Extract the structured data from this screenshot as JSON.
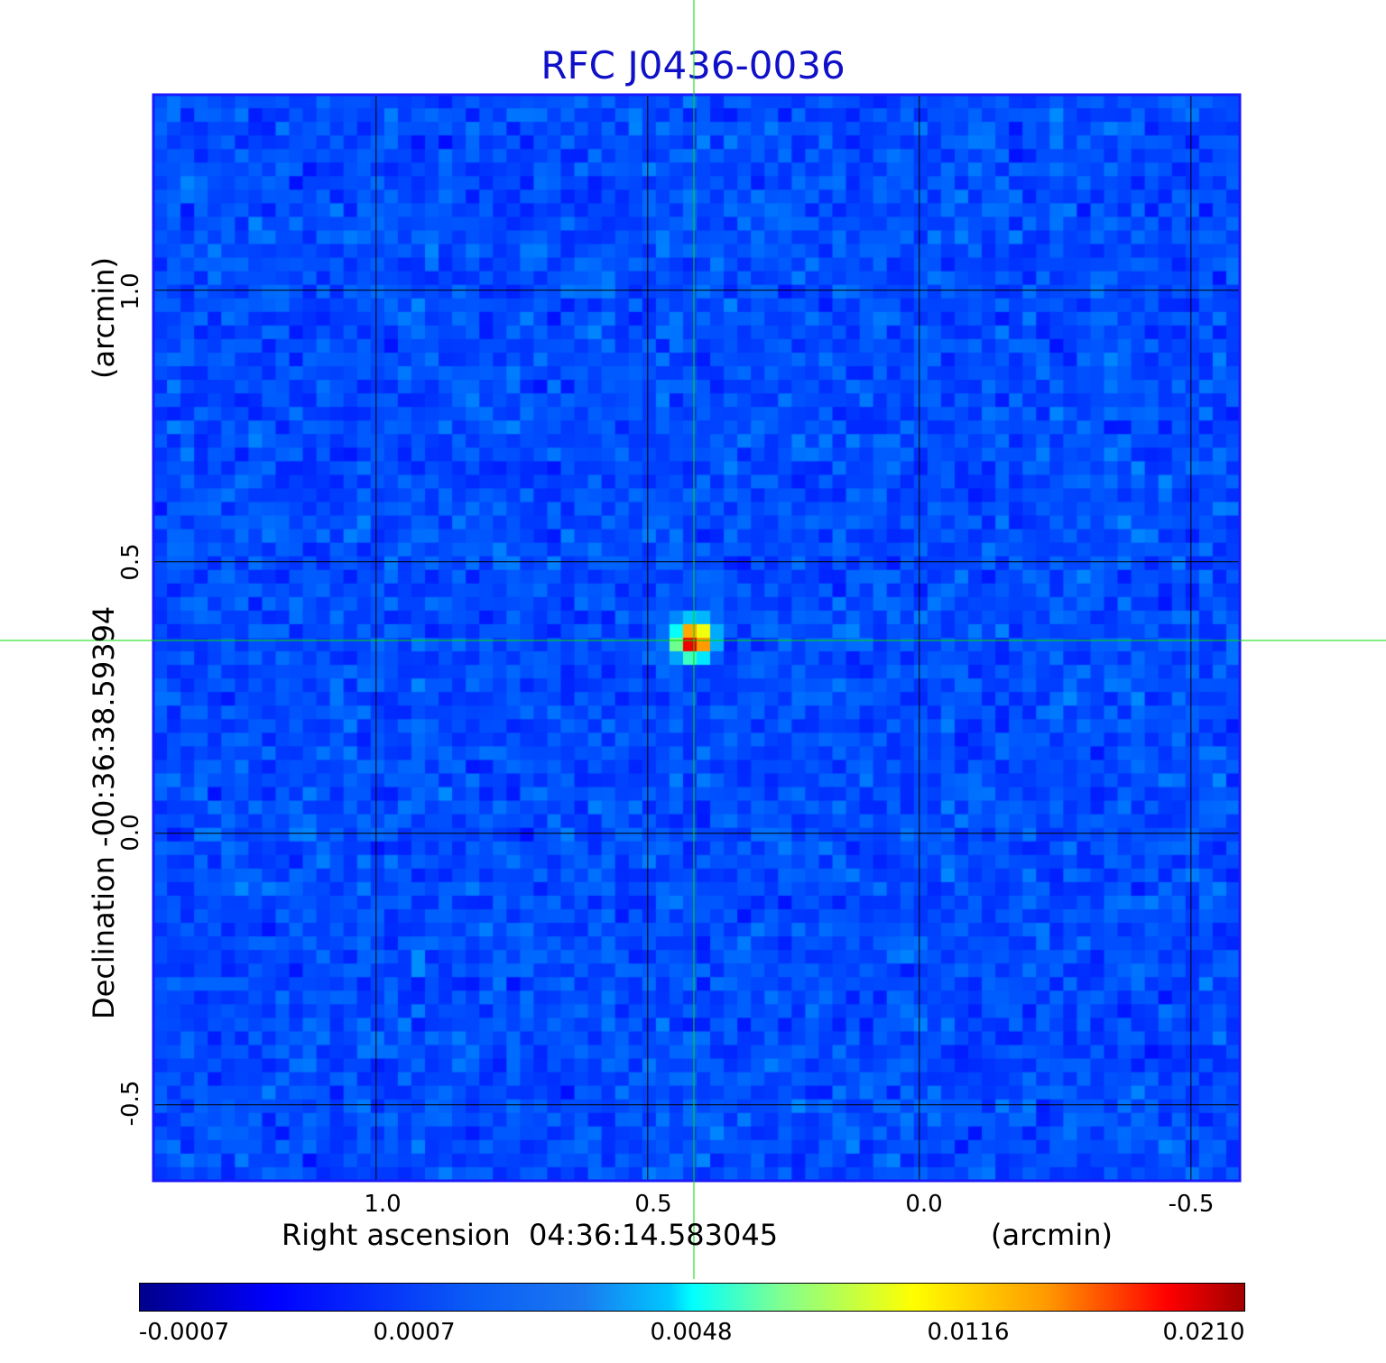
{
  "chart_data": {
    "type": "heatmap",
    "title": "RFC J0436-0036",
    "xlabel": "Right ascension  04:36:14.583045",
    "xunit": "(arcmin)",
    "ylabel": "Declination  -00:36:38.59394",
    "yunit": "(arcmin)",
    "xlim": [
      1.41,
      -0.59
    ],
    "ylim": [
      -0.64,
      1.36
    ],
    "xticks": [
      1.0,
      0.5,
      0.0,
      -0.5
    ],
    "xtick_labels": [
      "1.0",
      "0.5",
      "0.0",
      "-0.5"
    ],
    "yticks": [
      1.0,
      0.5,
      0.0,
      -0.5
    ],
    "ytick_labels": [
      "1.0",
      "0.5",
      "0.0",
      "-0.5"
    ],
    "grid": true,
    "crosshair": {
      "x": 0.415,
      "y": 0.355,
      "color": "#00dd00"
    },
    "source_peak": {
      "x": 0.415,
      "y": 0.355,
      "value": 0.021
    },
    "colormap": "jet",
    "colorbar": {
      "tick_labels": [
        "-0.0007",
        "0.0007",
        "0.0048",
        "0.0116",
        "0.0210"
      ],
      "ticks": [
        -0.0007,
        0.0007,
        0.0048,
        0.0116,
        0.021
      ]
    }
  },
  "colors": {
    "title": "#1010c8",
    "frame": "#1a1aff",
    "crosshair": "#00dd00"
  }
}
